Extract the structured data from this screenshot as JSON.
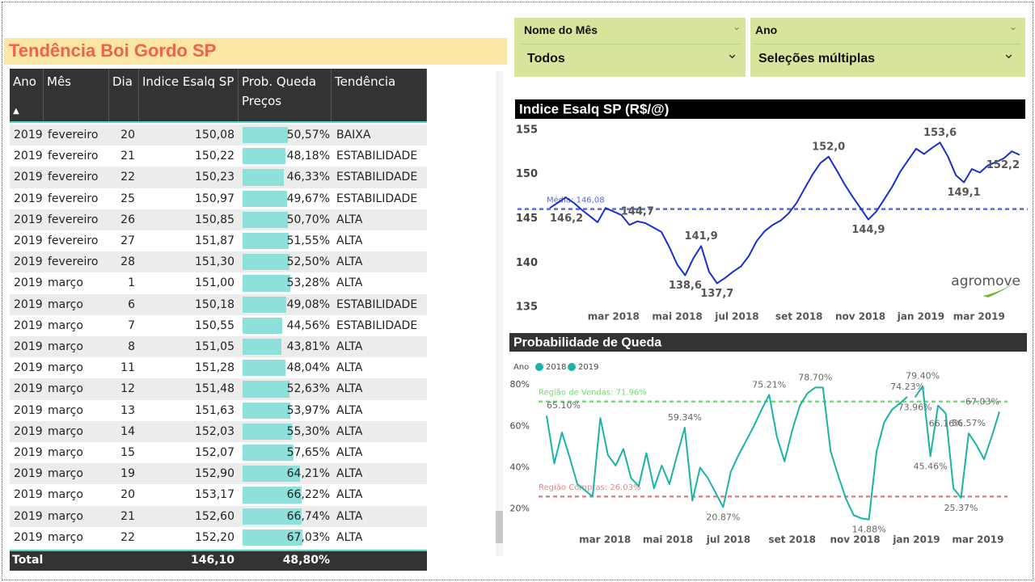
{
  "title": "Tendência Boi Gordo SP",
  "slicers": [
    {
      "label": "Nome do Mês",
      "value": "Todos"
    },
    {
      "label": "Ano",
      "value": "Seleções múltiplas"
    }
  ],
  "table": {
    "columns": [
      "Ano",
      "Mês",
      "Dia",
      "Indice Esalq SP",
      "Prob. Queda Preços",
      "Tendência"
    ],
    "rows": [
      {
        "ano": 2019,
        "mes": "fevereiro",
        "dia": 20,
        "indice": "150,08",
        "prob": 50.57,
        "prob_label": "50,57%",
        "tendencia": "BAIXA"
      },
      {
        "ano": 2019,
        "mes": "fevereiro",
        "dia": 21,
        "indice": "150,22",
        "prob": 48.18,
        "prob_label": "48,18%",
        "tendencia": "ESTABILIDADE"
      },
      {
        "ano": 2019,
        "mes": "fevereiro",
        "dia": 22,
        "indice": "150,23",
        "prob": 46.33,
        "prob_label": "46,33%",
        "tendencia": "ESTABILIDADE"
      },
      {
        "ano": 2019,
        "mes": "fevereiro",
        "dia": 25,
        "indice": "150,97",
        "prob": 49.67,
        "prob_label": "49,67%",
        "tendencia": "ESTABILIDADE"
      },
      {
        "ano": 2019,
        "mes": "fevereiro",
        "dia": 26,
        "indice": "150,85",
        "prob": 50.7,
        "prob_label": "50,70%",
        "tendencia": "ALTA"
      },
      {
        "ano": 2019,
        "mes": "fevereiro",
        "dia": 27,
        "indice": "151,87",
        "prob": 51.55,
        "prob_label": "51,55%",
        "tendencia": "ALTA"
      },
      {
        "ano": 2019,
        "mes": "fevereiro",
        "dia": 28,
        "indice": "151,30",
        "prob": 52.5,
        "prob_label": "52,50%",
        "tendencia": "ALTA"
      },
      {
        "ano": 2019,
        "mes": "março",
        "dia": 1,
        "indice": "151,00",
        "prob": 53.28,
        "prob_label": "53,28%",
        "tendencia": "ALTA"
      },
      {
        "ano": 2019,
        "mes": "março",
        "dia": 6,
        "indice": "150,18",
        "prob": 49.08,
        "prob_label": "49,08%",
        "tendencia": "ESTABILIDADE"
      },
      {
        "ano": 2019,
        "mes": "março",
        "dia": 7,
        "indice": "150,55",
        "prob": 44.56,
        "prob_label": "44,56%",
        "tendencia": "ESTABILIDADE"
      },
      {
        "ano": 2019,
        "mes": "março",
        "dia": 8,
        "indice": "151,05",
        "prob": 43.81,
        "prob_label": "43,81%",
        "tendencia": "ALTA"
      },
      {
        "ano": 2019,
        "mes": "março",
        "dia": 11,
        "indice": "151,28",
        "prob": 48.04,
        "prob_label": "48,04%",
        "tendencia": "ALTA"
      },
      {
        "ano": 2019,
        "mes": "março",
        "dia": 12,
        "indice": "151,48",
        "prob": 52.63,
        "prob_label": "52,63%",
        "tendencia": "ALTA"
      },
      {
        "ano": 2019,
        "mes": "março",
        "dia": 13,
        "indice": "151,63",
        "prob": 53.97,
        "prob_label": "53,97%",
        "tendencia": "ALTA"
      },
      {
        "ano": 2019,
        "mes": "março",
        "dia": 14,
        "indice": "152,03",
        "prob": 55.3,
        "prob_label": "55,30%",
        "tendencia": "ALTA"
      },
      {
        "ano": 2019,
        "mes": "março",
        "dia": 15,
        "indice": "152,07",
        "prob": 57.65,
        "prob_label": "57,65%",
        "tendencia": "ALTA"
      },
      {
        "ano": 2019,
        "mes": "março",
        "dia": 19,
        "indice": "152,90",
        "prob": 64.21,
        "prob_label": "64,21%",
        "tendencia": "ALTA"
      },
      {
        "ano": 2019,
        "mes": "março",
        "dia": 20,
        "indice": "153,17",
        "prob": 66.22,
        "prob_label": "66,22%",
        "tendencia": "ALTA"
      },
      {
        "ano": 2019,
        "mes": "março",
        "dia": 21,
        "indice": "152,60",
        "prob": 66.74,
        "prob_label": "66,74%",
        "tendencia": "ALTA"
      },
      {
        "ano": 2019,
        "mes": "março",
        "dia": 22,
        "indice": "152,20",
        "prob": 67.03,
        "prob_label": "67,03%",
        "tendencia": "ALTA"
      }
    ],
    "total": {
      "label": "Total",
      "indice": "146,10",
      "prob": "48,80%"
    }
  },
  "chart_data": [
    {
      "type": "line",
      "title": "Indice Esalq SP (R$/@)",
      "logo": "agromove",
      "xlim": [
        0,
        59
      ],
      "ylim": [
        134.5,
        156
      ],
      "yticks": [
        135,
        140,
        145,
        150,
        155
      ],
      "xticks": [
        {
          "value": 8,
          "label": "mar 2018"
        },
        {
          "value": 16,
          "label": "mai 2018"
        },
        {
          "value": 23.5,
          "label": "jul 2018"
        },
        {
          "value": 31.3,
          "label": "set 2018"
        },
        {
          "value": 39,
          "label": "nov 2018"
        },
        {
          "value": 46.6,
          "label": "jan 2019"
        },
        {
          "value": 53.9,
          "label": "mar 2019"
        }
      ],
      "grid": false,
      "reference_lines": [
        {
          "value": 146.08,
          "label": "Média: 146,08",
          "color": "#5a67e8"
        }
      ],
      "series": [
        {
          "color": "#1a2fd0",
          "values": [
            146.2,
            146.8,
            147.4,
            146.8,
            146.0,
            145.3,
            144.6,
            146.2,
            145.8,
            145.4,
            144.3,
            144.7,
            144.5,
            144.0,
            143.5,
            141.8,
            139.8,
            138.6,
            140.5,
            141.9,
            139.0,
            137.7,
            138.3,
            139.0,
            139.6,
            140.8,
            142.5,
            143.6,
            144.3,
            144.8,
            145.6,
            146.8,
            148.4,
            150.0,
            151.3,
            152.0,
            150.5,
            148.9,
            147.5,
            146.2,
            144.9,
            145.8,
            147.2,
            148.6,
            150.3,
            151.6,
            152.9,
            152.3,
            153.0,
            153.6,
            152.0,
            149.9,
            149.1,
            150.6,
            150.2,
            151.0,
            151.4,
            151.8,
            152.6,
            152.2
          ],
          "value_labels": [
            "146,2",
            null,
            null,
            null,
            null,
            null,
            null,
            null,
            null,
            null,
            null,
            "144,7",
            null,
            null,
            null,
            null,
            null,
            "138,6",
            null,
            "141,9",
            null,
            "137,7",
            null,
            null,
            null,
            null,
            null,
            null,
            null,
            null,
            null,
            null,
            null,
            null,
            null,
            "152,0",
            null,
            null,
            null,
            null,
            "144,9",
            null,
            null,
            null,
            null,
            null,
            null,
            null,
            null,
            "153,6",
            null,
            null,
            "149,1",
            null,
            null,
            null,
            null,
            null,
            null,
            "152,2"
          ]
        }
      ]
    },
    {
      "type": "line",
      "title": "Probabilidade de Queda",
      "legend_title": "Ano",
      "xlim": [
        0,
        59
      ],
      "ylim": [
        14,
        82
      ],
      "yticks": [
        {
          "value": 20,
          "label": "20%"
        },
        {
          "value": 40,
          "label": "40%"
        },
        {
          "value": 60,
          "label": "60%"
        },
        {
          "value": 80,
          "label": "80%"
        }
      ],
      "xticks": [
        {
          "value": 7.6,
          "label": "mar 2018"
        },
        {
          "value": 15.8,
          "label": "mai 2018"
        },
        {
          "value": 23.7,
          "label": "jul 2018"
        },
        {
          "value": 32,
          "label": "set 2018"
        },
        {
          "value": 40.2,
          "label": "nov 2018"
        },
        {
          "value": 48.2,
          "label": "jan 2019"
        },
        {
          "value": 56.2,
          "label": "mar 2019"
        }
      ],
      "grid": false,
      "reference_lines": [
        {
          "value": 71.96,
          "label": "Região de Vendas: 71.96%",
          "color": "#6ee06e"
        },
        {
          "value": 26.03,
          "label": "Região Compras: 26.03%",
          "color": "#f08080"
        }
      ],
      "series": [
        {
          "name": "2018",
          "color": "#1ab3a6",
          "values": [
            65.1,
            42,
            57,
            45,
            32,
            29,
            26,
            64,
            46,
            41,
            49,
            35,
            31,
            47,
            30,
            41,
            32,
            46,
            59.34,
            24,
            40,
            35,
            28,
            20.87,
            38,
            46,
            53,
            60,
            68,
            75.21,
            55,
            43,
            58,
            70,
            76,
            78.7,
            78.7,
            48,
            36,
            25,
            17,
            15.5,
            14.88,
            48,
            62,
            68,
            71,
            74.23,
            null,
            null,
            null,
            null,
            null,
            null,
            null,
            null,
            null,
            null,
            null,
            null
          ],
          "value_labels": [
            "65.10%",
            null,
            null,
            null,
            null,
            null,
            null,
            null,
            null,
            null,
            null,
            null,
            null,
            null,
            null,
            null,
            null,
            null,
            "59.34%",
            null,
            null,
            null,
            null,
            "20.87%",
            null,
            null,
            null,
            null,
            null,
            "75.21%",
            null,
            null,
            null,
            null,
            null,
            "78.70%",
            null,
            null,
            null,
            null,
            null,
            null,
            "14.88%",
            null,
            null,
            null,
            null,
            "74.23%",
            null,
            null,
            null,
            null,
            null,
            null,
            null,
            null,
            null,
            null,
            null,
            null
          ]
        },
        {
          "name": "2019",
          "color": "#1ab3a6",
          "values": [
            null,
            null,
            null,
            null,
            null,
            null,
            null,
            null,
            null,
            null,
            null,
            null,
            null,
            null,
            null,
            null,
            null,
            null,
            null,
            null,
            null,
            null,
            null,
            null,
            null,
            null,
            null,
            null,
            null,
            null,
            null,
            null,
            null,
            null,
            null,
            null,
            null,
            null,
            null,
            null,
            null,
            null,
            null,
            null,
            null,
            null,
            null,
            null,
            73.96,
            79.4,
            45.46,
            70,
            66.16,
            30,
            25.37,
            56.57,
            51,
            44,
            55,
            67.03
          ],
          "value_labels": [
            null,
            null,
            null,
            null,
            null,
            null,
            null,
            null,
            null,
            null,
            null,
            null,
            null,
            null,
            null,
            null,
            null,
            null,
            null,
            null,
            null,
            null,
            null,
            null,
            null,
            null,
            null,
            null,
            null,
            null,
            null,
            null,
            null,
            null,
            null,
            null,
            null,
            null,
            null,
            null,
            null,
            null,
            null,
            null,
            null,
            null,
            null,
            null,
            "73.96%",
            "79.40%",
            "45.46%",
            null,
            "66.16%",
            null,
            "25.37%",
            "56.57%",
            null,
            null,
            null,
            "67.03%"
          ]
        }
      ]
    }
  ]
}
